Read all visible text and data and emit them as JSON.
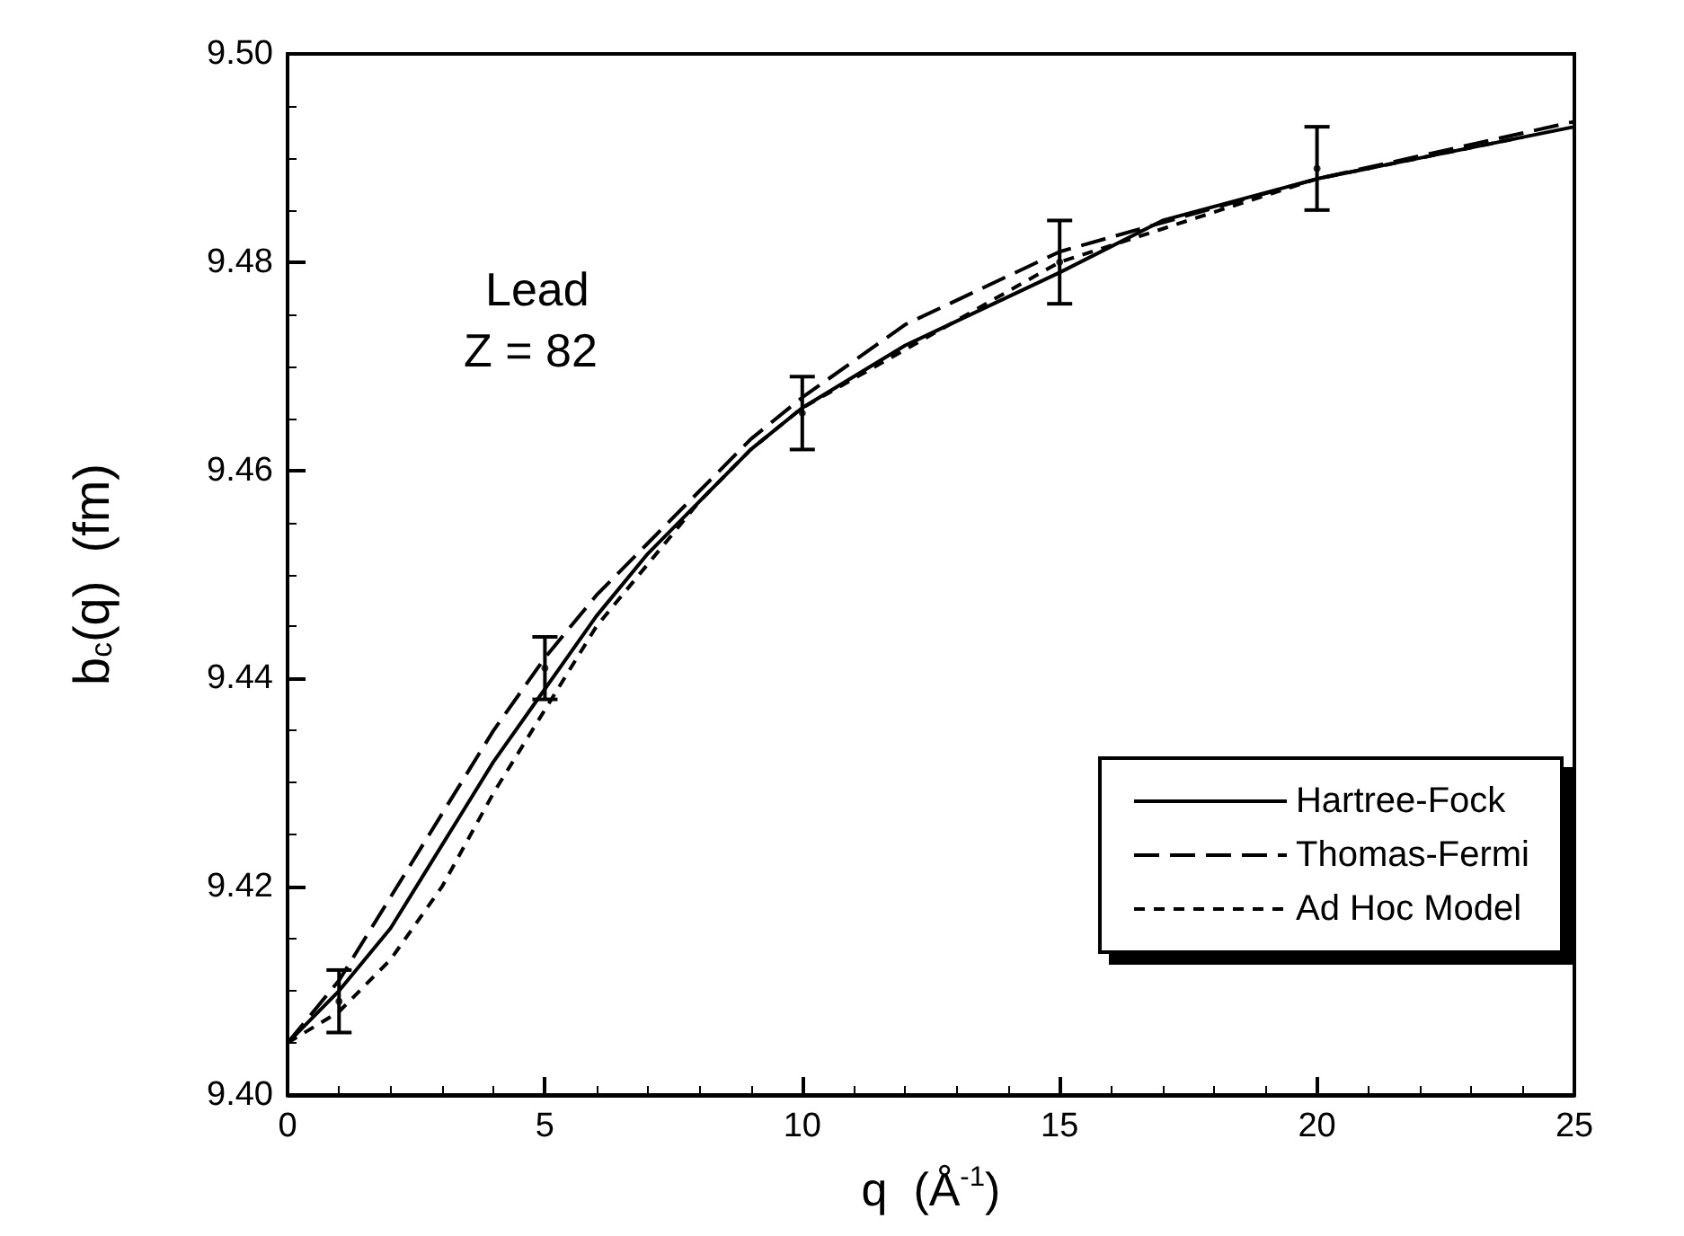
{
  "chart_data": {
    "type": "line",
    "xlabel": "q  (Å$^{-1}$)",
    "ylabel": "b$_{c}$(q)  (fm)",
    "annotations": [
      "Lead",
      "Z = 82"
    ],
    "xlim": [
      0,
      25
    ],
    "xticks": [
      0,
      5,
      10,
      15,
      20,
      25
    ],
    "ylim": [
      9.4,
      9.5
    ],
    "yticks": [
      {
        "value": 9.4,
        "label": "9.40"
      },
      {
        "value": 9.42,
        "label": "9.42"
      },
      {
        "value": 9.44,
        "label": "9.44"
      },
      {
        "value": 9.46,
        "label": "9.46"
      },
      {
        "value": 9.48,
        "label": "9.48"
      },
      {
        "value": 9.5,
        "label": "9.50"
      }
    ],
    "legend": "bottom right",
    "grid": false,
    "series": [
      {
        "name": "Hartree-Fock",
        "color": "#000000",
        "line_style": "solid",
        "x": [
          0,
          1,
          2,
          3,
          4,
          5,
          6,
          7,
          8,
          9,
          10,
          12,
          15,
          17,
          20,
          22,
          25
        ],
        "values": [
          9.405,
          9.41,
          9.416,
          9.424,
          9.432,
          9.439,
          9.446,
          9.452,
          9.457,
          9.462,
          9.466,
          9.472,
          9.479,
          9.484,
          9.488,
          9.49,
          9.493
        ]
      },
      {
        "name": "Thomas-Fermi",
        "color": "#000000",
        "line_style": "dashed",
        "x": [
          0,
          1,
          2,
          3,
          4,
          5,
          6,
          7,
          8,
          9,
          10,
          12,
          15,
          20,
          25
        ],
        "values": [
          9.405,
          9.411,
          9.419,
          9.427,
          9.435,
          9.442,
          9.448,
          9.453,
          9.458,
          9.463,
          9.467,
          9.474,
          9.481,
          9.488,
          9.4935
        ]
      },
      {
        "name": "Ad Hoc Model",
        "color": "#000000",
        "line_style": "dotted",
        "x": [
          0,
          1,
          2,
          3,
          4,
          5,
          6,
          7,
          8,
          9,
          10,
          15,
          20,
          24
        ],
        "values": [
          9.405,
          9.408,
          9.413,
          9.42,
          9.429,
          9.437,
          9.445,
          9.451,
          9.457,
          9.462,
          9.466,
          9.48,
          9.488,
          9.492
        ]
      },
      {
        "type": "scatter",
        "marker": "circle",
        "color": "#000000",
        "x": [
          1,
          5,
          10,
          15,
          20
        ],
        "values": [
          9.409,
          9.441,
          9.4655,
          9.48,
          9.489
        ],
        "errors": [
          0.003,
          0.003,
          0.0035,
          0.004,
          0.004
        ]
      }
    ]
  }
}
